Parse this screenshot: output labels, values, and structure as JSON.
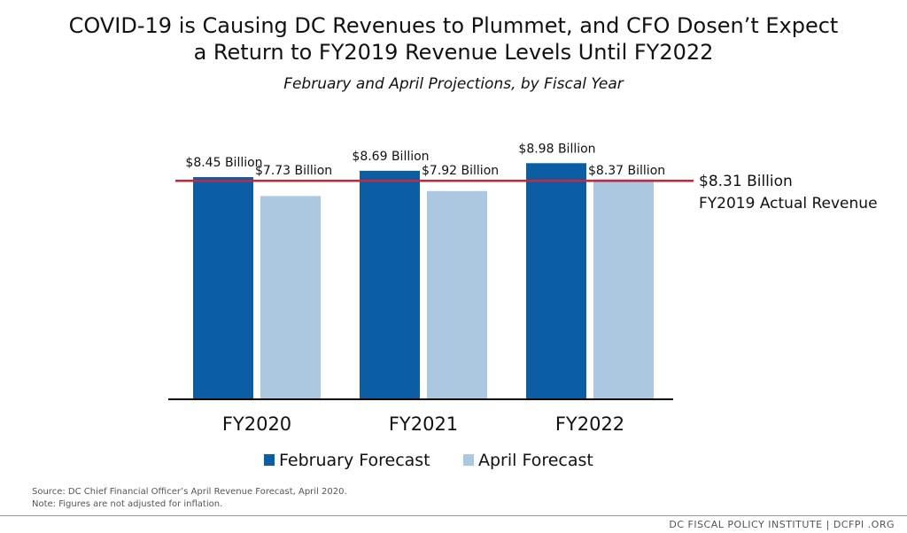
{
  "title_line1": "COVID-19 is Causing DC Revenues to Plummet, and CFO Dosen’t Expect",
  "title_line2": "a Return to FY2019 Revenue Levels Until FY2022",
  "subtitle": "February and April Projections, by Fiscal Year",
  "colors": {
    "february": "#0b5ea4",
    "april": "#abc8e0",
    "reference": "#c8263a",
    "axis": "#000000"
  },
  "chart_data": {
    "type": "bar",
    "categories": [
      "FY2020",
      "FY2021",
      "FY2022"
    ],
    "series": [
      {
        "name": "February Forecast",
        "values": [
          8.45,
          8.69,
          8.98
        ],
        "labels": [
          "$8.45 Billion",
          "$8.69 Billion",
          "$8.98 Billion"
        ]
      },
      {
        "name": "April Forecast",
        "values": [
          7.73,
          7.92,
          8.37
        ],
        "labels": [
          "$7.73 Billion",
          "$7.92 Billion",
          "$8.37 Billion"
        ]
      }
    ],
    "reference_line": {
      "value": 8.31,
      "label_value": "$8.31 Billion",
      "label_text": "FY2019 Actual Revenue"
    },
    "ylim": [
      0,
      9.3
    ],
    "grid": false,
    "legend_position": "bottom"
  },
  "source_lines": [
    "Source: DC Chief Financial Officer’s April Revenue Forecast, April 2020.",
    "Note: Figures are not adjusted for inflation."
  ],
  "footer": "DC FISCAL POLICY INSTITUTE  |  DCFPI .ORG"
}
